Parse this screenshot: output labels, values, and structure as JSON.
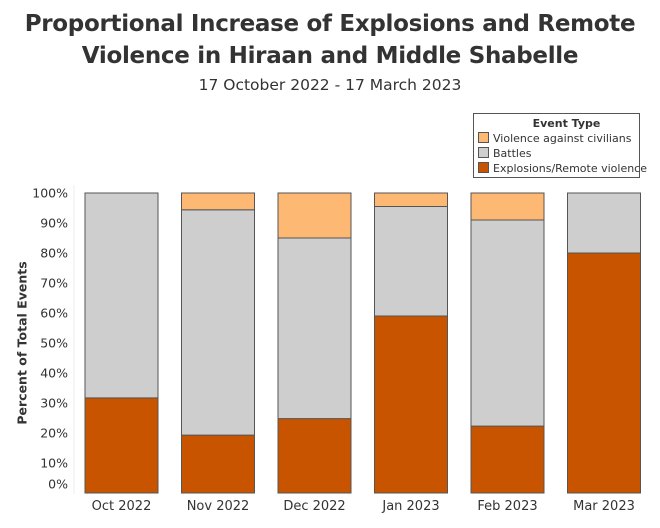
{
  "chart_data": {
    "type": "bar",
    "stacked": true,
    "title": "Proportional Increase of Explosions and Remote Violence in Hiraan and Middle Shabelle",
    "title_lines": [
      "Proportional Increase of Explosions and Remote",
      "Violence in Hiraan and Middle Shabelle"
    ],
    "subtitle": "17 October 2022 - 17 March 2023",
    "xlabel": "",
    "ylabel": "Percent of Total Events",
    "ylim": [
      0,
      100
    ],
    "yticks": [
      0,
      10,
      20,
      30,
      40,
      50,
      60,
      70,
      80,
      90,
      100
    ],
    "ytick_labels": [
      "0%",
      "10%",
      "20%",
      "30%",
      "40%",
      "50%",
      "60%",
      "70%",
      "80%",
      "90%",
      "100%"
    ],
    "categories": [
      "Oct 2022",
      "Nov 2022",
      "Dec 2022",
      "Jan 2023",
      "Feb 2023",
      "Mar 2023"
    ],
    "legend": {
      "title": "Event Type",
      "position": "top-right",
      "entries": [
        "Violence against civilians",
        "Battles",
        "Explosions/Remote violence"
      ]
    },
    "series": [
      {
        "name": "Explosions/Remote violence",
        "color": "#c95400",
        "values": [
          31.7,
          19.3,
          24.8,
          59.0,
          22.3,
          80.0
        ]
      },
      {
        "name": "Battles",
        "color": "#cecece",
        "values": [
          68.3,
          75.1,
          60.2,
          36.5,
          68.7,
          20.0
        ]
      },
      {
        "name": "Violence against civilians",
        "color": "#fdb873",
        "values": [
          0.0,
          5.6,
          15.0,
          4.5,
          9.0,
          0.0
        ]
      }
    ],
    "grid": false
  }
}
